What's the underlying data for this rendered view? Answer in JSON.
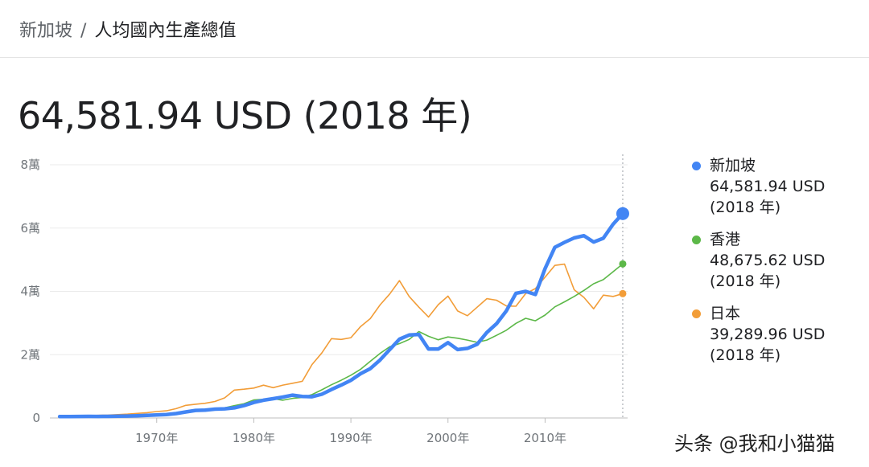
{
  "header": {
    "breadcrumb_parent": "新加坡",
    "separator": "/",
    "breadcrumb_current": "人均國內生產總值"
  },
  "headline": "64,581.94 USD (2018 年)",
  "watermark": "头条 @我和小猫猫",
  "chart_data": {
    "type": "line",
    "x": [
      1960,
      1961,
      1962,
      1963,
      1964,
      1965,
      1966,
      1967,
      1968,
      1969,
      1970,
      1971,
      1972,
      1973,
      1974,
      1975,
      1976,
      1977,
      1978,
      1979,
      1980,
      1981,
      1982,
      1983,
      1984,
      1985,
      1986,
      1987,
      1988,
      1989,
      1990,
      1991,
      1992,
      1993,
      1994,
      1995,
      1996,
      1997,
      1998,
      1999,
      2000,
      2001,
      2002,
      2003,
      2004,
      2005,
      2006,
      2007,
      2008,
      2009,
      2010,
      2011,
      2012,
      2013,
      2014,
      2015,
      2016,
      2017,
      2018
    ],
    "ylim": [
      0,
      80000
    ],
    "xlim": [
      1959,
      2018.5
    ],
    "y_ticks": [
      {
        "value": 0,
        "label": "0"
      },
      {
        "value": 20000,
        "label": "2萬"
      },
      {
        "value": 40000,
        "label": "4萬"
      },
      {
        "value": 60000,
        "label": "6萬"
      },
      {
        "value": 80000,
        "label": "8萬"
      }
    ],
    "x_ticks": [
      {
        "value": 1970,
        "label": "1970年"
      },
      {
        "value": 1980,
        "label": "1980年"
      },
      {
        "value": 1990,
        "label": "1990年"
      },
      {
        "value": 2000,
        "label": "2000年"
      },
      {
        "value": 2010,
        "label": "2010年"
      }
    ],
    "grid": true,
    "legend_position": "right",
    "series": [
      {
        "name": "新加坡",
        "value_label": "64,581.94 USD",
        "year_label": "(2018 年)",
        "color": "#4285f4",
        "values": [
          450,
          450,
          470,
          500,
          470,
          520,
          560,
          620,
          700,
          810,
          930,
          1100,
          1400,
          1900,
          2400,
          2500,
          2800,
          2900,
          3200,
          3900,
          4900,
          5600,
          6100,
          6600,
          7200,
          6800,
          6700,
          7500,
          9000,
          10400,
          11900,
          14000,
          15600,
          18300,
          21600,
          24900,
          26200,
          26400,
          21800,
          21800,
          23800,
          21600,
          22000,
          23300,
          27000,
          29800,
          33800,
          39400,
          40000,
          39000,
          47200,
          53900,
          55500,
          56900,
          57600,
          55600,
          56800,
          61200,
          64581.94
        ]
      },
      {
        "name": "香港",
        "value_label": "48,675.62 USD",
        "year_label": "(2018 年)",
        "color": "#5cb848",
        "values": [
          430,
          450,
          490,
          560,
          630,
          680,
          700,
          720,
          710,
          830,
          960,
          1100,
          1390,
          1890,
          2100,
          2200,
          2800,
          3200,
          3900,
          4500,
          5700,
          5900,
          6100,
          5600,
          6200,
          6500,
          7400,
          8900,
          10500,
          11900,
          13500,
          15400,
          17900,
          20400,
          22500,
          23500,
          24800,
          27300,
          25800,
          24700,
          25600,
          25200,
          24600,
          23900,
          24600,
          26100,
          27700,
          29900,
          31500,
          30700,
          32500,
          35100,
          36700,
          38400,
          40300,
          42400,
          43700,
          46200,
          48675.62
        ]
      },
      {
        "name": "日本",
        "value_label": "39,289.96 USD",
        "year_label": "(2018 年)",
        "color": "#f29d38",
        "values": [
          480,
          560,
          630,
          720,
          840,
          920,
          1060,
          1230,
          1450,
          1670,
          2030,
          2270,
          2950,
          3990,
          4350,
          4660,
          5200,
          6340,
          8820,
          9100,
          9450,
          10360,
          9580,
          10400,
          10980,
          11580,
          16880,
          20510,
          25060,
          24810,
          25360,
          28900,
          31400,
          35700,
          39200,
          43400,
          38400,
          35000,
          31900,
          35800,
          38500,
          33800,
          32300,
          35000,
          37700,
          37200,
          35400,
          35300,
          39300,
          40900,
          44500,
          48200,
          48600,
          40500,
          38100,
          34500,
          38800,
          38400,
          39289.96
        ]
      }
    ]
  }
}
